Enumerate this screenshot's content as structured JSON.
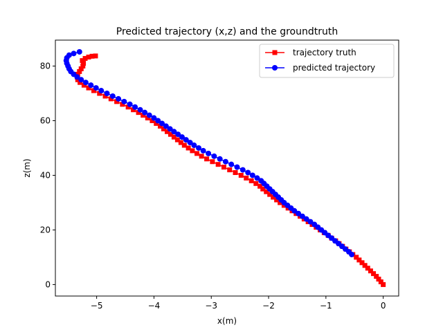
{
  "chart_data": {
    "type": "line",
    "title": "Predicted trajectory (x,z) and the groundtruth",
    "xlabel": "x(m)",
    "ylabel": "z(m)",
    "xlim": [
      -5.72,
      0.27
    ],
    "ylim": [
      -4.2,
      89.5
    ],
    "xticks": [
      -5,
      -4,
      -3,
      -2,
      -1,
      0
    ],
    "yticks": [
      0,
      20,
      40,
      60,
      80
    ],
    "grid": false,
    "legend_position": "top-right",
    "series": [
      {
        "name": "trajectory truth",
        "color": "#ff0000",
        "marker": "square",
        "points": [
          [
            0.0,
            0.0
          ],
          [
            -0.04,
            1.0
          ],
          [
            -0.08,
            2.0
          ],
          [
            -0.12,
            3.0
          ],
          [
            -0.17,
            4.0
          ],
          [
            -0.22,
            5.0
          ],
          [
            -0.27,
            6.0
          ],
          [
            -0.32,
            7.0
          ],
          [
            -0.37,
            8.0
          ],
          [
            -0.42,
            9.0
          ],
          [
            -0.47,
            10.0
          ],
          [
            -0.53,
            11.0
          ],
          [
            -0.59,
            12.0
          ],
          [
            -0.65,
            13.0
          ],
          [
            -0.71,
            14.0
          ],
          [
            -0.77,
            15.0
          ],
          [
            -0.83,
            16.0
          ],
          [
            -0.9,
            17.0
          ],
          [
            -0.96,
            18.0
          ],
          [
            -1.03,
            19.0
          ],
          [
            -1.1,
            20.0
          ],
          [
            -1.17,
            21.0
          ],
          [
            -1.24,
            22.0
          ],
          [
            -1.31,
            23.0
          ],
          [
            -1.38,
            24.0
          ],
          [
            -1.45,
            25.0
          ],
          [
            -1.52,
            26.0
          ],
          [
            -1.59,
            27.0
          ],
          [
            -1.66,
            28.0
          ],
          [
            -1.73,
            29.0
          ],
          [
            -1.8,
            30.0
          ],
          [
            -1.86,
            31.0
          ],
          [
            -1.92,
            32.0
          ],
          [
            -1.98,
            33.0
          ],
          [
            -2.04,
            34.0
          ],
          [
            -2.1,
            35.0
          ],
          [
            -2.15,
            36.0
          ],
          [
            -2.22,
            37.0
          ],
          [
            -2.3,
            38.0
          ],
          [
            -2.39,
            39.0
          ],
          [
            -2.48,
            40.0
          ],
          [
            -2.58,
            41.0
          ],
          [
            -2.68,
            42.0
          ],
          [
            -2.78,
            43.0
          ],
          [
            -2.88,
            44.0
          ],
          [
            -2.98,
            45.0
          ],
          [
            -3.08,
            46.0
          ],
          [
            -3.17,
            47.0
          ],
          [
            -3.25,
            48.0
          ],
          [
            -3.33,
            49.0
          ],
          [
            -3.4,
            50.0
          ],
          [
            -3.47,
            51.0
          ],
          [
            -3.53,
            52.0
          ],
          [
            -3.59,
            53.0
          ],
          [
            -3.65,
            54.0
          ],
          [
            -3.71,
            55.0
          ],
          [
            -3.77,
            56.0
          ],
          [
            -3.83,
            57.0
          ],
          [
            -3.89,
            58.0
          ],
          [
            -3.96,
            59.0
          ],
          [
            -4.03,
            60.0
          ],
          [
            -4.11,
            61.0
          ],
          [
            -4.19,
            62.0
          ],
          [
            -4.27,
            63.0
          ],
          [
            -4.36,
            64.0
          ],
          [
            -4.45,
            65.0
          ],
          [
            -4.55,
            66.0
          ],
          [
            -4.65,
            67.0
          ],
          [
            -4.75,
            68.0
          ],
          [
            -4.85,
            69.0
          ],
          [
            -4.95,
            70.0
          ],
          [
            -5.05,
            71.0
          ],
          [
            -5.14,
            72.0
          ],
          [
            -5.22,
            73.0
          ],
          [
            -5.29,
            74.0
          ],
          [
            -5.33,
            75.0
          ],
          [
            -5.34,
            76.0
          ],
          [
            -5.33,
            77.0
          ],
          [
            -5.3,
            78.0
          ],
          [
            -5.27,
            79.0
          ],
          [
            -5.24,
            80.0
          ],
          [
            -5.23,
            81.0
          ],
          [
            -5.25,
            82.0
          ],
          [
            -5.2,
            82.8
          ],
          [
            -5.14,
            83.3
          ],
          [
            -5.08,
            83.6
          ],
          [
            -5.02,
            83.7
          ]
        ]
      },
      {
        "name": "predicted trajectory",
        "color": "#0000ff",
        "marker": "circle",
        "points": [
          [
            -0.55,
            11.0
          ],
          [
            -0.6,
            12.0
          ],
          [
            -0.66,
            13.0
          ],
          [
            -0.72,
            14.0
          ],
          [
            -0.78,
            15.0
          ],
          [
            -0.84,
            16.0
          ],
          [
            -0.9,
            17.0
          ],
          [
            -0.96,
            18.0
          ],
          [
            -1.02,
            19.0
          ],
          [
            -1.08,
            20.0
          ],
          [
            -1.14,
            21.0
          ],
          [
            -1.2,
            22.0
          ],
          [
            -1.27,
            23.0
          ],
          [
            -1.34,
            24.0
          ],
          [
            -1.41,
            25.0
          ],
          [
            -1.48,
            26.0
          ],
          [
            -1.55,
            27.0
          ],
          [
            -1.61,
            28.0
          ],
          [
            -1.67,
            29.0
          ],
          [
            -1.73,
            30.0
          ],
          [
            -1.78,
            31.0
          ],
          [
            -1.83,
            32.0
          ],
          [
            -1.88,
            33.0
          ],
          [
            -1.93,
            34.0
          ],
          [
            -1.98,
            35.0
          ],
          [
            -2.03,
            36.0
          ],
          [
            -2.08,
            37.0
          ],
          [
            -2.13,
            38.0
          ],
          [
            -2.2,
            39.0
          ],
          [
            -2.28,
            40.0
          ],
          [
            -2.36,
            41.0
          ],
          [
            -2.45,
            42.0
          ],
          [
            -2.55,
            43.0
          ],
          [
            -2.65,
            44.0
          ],
          [
            -2.75,
            45.0
          ],
          [
            -2.85,
            46.0
          ],
          [
            -2.95,
            47.0
          ],
          [
            -3.05,
            48.0
          ],
          [
            -3.14,
            49.0
          ],
          [
            -3.22,
            50.0
          ],
          [
            -3.3,
            51.0
          ],
          [
            -3.37,
            52.0
          ],
          [
            -3.44,
            53.0
          ],
          [
            -3.51,
            54.0
          ],
          [
            -3.58,
            55.0
          ],
          [
            -3.65,
            56.0
          ],
          [
            -3.72,
            57.0
          ],
          [
            -3.79,
            58.0
          ],
          [
            -3.86,
            59.0
          ],
          [
            -3.93,
            60.0
          ],
          [
            -4.0,
            61.0
          ],
          [
            -4.08,
            62.0
          ],
          [
            -4.16,
            63.0
          ],
          [
            -4.24,
            64.0
          ],
          [
            -4.33,
            65.0
          ],
          [
            -4.42,
            66.0
          ],
          [
            -4.52,
            67.0
          ],
          [
            -4.62,
            68.0
          ],
          [
            -4.72,
            69.0
          ],
          [
            -4.82,
            70.0
          ],
          [
            -4.92,
            71.0
          ],
          [
            -5.01,
            72.0
          ],
          [
            -5.1,
            73.0
          ],
          [
            -5.19,
            74.0
          ],
          [
            -5.27,
            75.0
          ],
          [
            -5.34,
            76.0
          ],
          [
            -5.4,
            77.0
          ],
          [
            -5.45,
            78.0
          ],
          [
            -5.48,
            79.0
          ],
          [
            -5.5,
            80.0
          ],
          [
            -5.52,
            81.0
          ],
          [
            -5.53,
            82.0
          ],
          [
            -5.52,
            83.0
          ],
          [
            -5.48,
            84.0
          ],
          [
            -5.4,
            84.6
          ],
          [
            -5.3,
            85.2
          ]
        ]
      }
    ]
  }
}
